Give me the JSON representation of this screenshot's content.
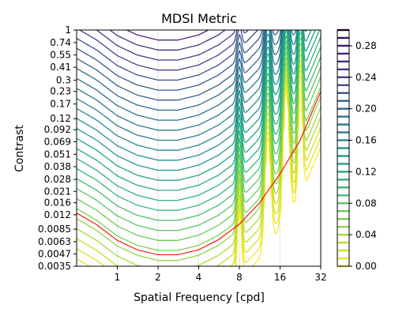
{
  "chart_data": {
    "type": "contour",
    "title": "MDSI Metric",
    "xlabel": "Spatial Frequency [cpd]",
    "ylabel": "Contrast",
    "x_scale": "log2",
    "y_scale": "log",
    "xlim": [
      0.5,
      32
    ],
    "ylim": [
      0.0035,
      1
    ],
    "xticks": [
      {
        "value": 1,
        "label": "1"
      },
      {
        "value": 2,
        "label": "2"
      },
      {
        "value": 4,
        "label": "4"
      },
      {
        "value": 8,
        "label": "8"
      },
      {
        "value": 16,
        "label": "16"
      },
      {
        "value": 32,
        "label": "32"
      }
    ],
    "yticks": [
      {
        "value": 1,
        "label": "1"
      },
      {
        "value": 0.74,
        "label": "0.74"
      },
      {
        "value": 0.55,
        "label": "0.55"
      },
      {
        "value": 0.41,
        "label": "0.41"
      },
      {
        "value": 0.3,
        "label": "0.3"
      },
      {
        "value": 0.23,
        "label": "0.23"
      },
      {
        "value": 0.17,
        "label": "0.17"
      },
      {
        "value": 0.12,
        "label": "0.12"
      },
      {
        "value": 0.092,
        "label": "0.092"
      },
      {
        "value": 0.069,
        "label": "0.069"
      },
      {
        "value": 0.051,
        "label": "0.051"
      },
      {
        "value": 0.038,
        "label": "0.038"
      },
      {
        "value": 0.028,
        "label": "0.028"
      },
      {
        "value": 0.021,
        "label": "0.021"
      },
      {
        "value": 0.016,
        "label": "0.016"
      },
      {
        "value": 0.012,
        "label": "0.012"
      },
      {
        "value": 0.0085,
        "label": "0.0085"
      },
      {
        "value": 0.0063,
        "label": "0.0063"
      },
      {
        "value": 0.0047,
        "label": "0.0047"
      },
      {
        "value": 0.0035,
        "label": "0.0035"
      }
    ],
    "grid": {
      "x": true,
      "y": false
    },
    "colormap": "viridis",
    "colorbar": {
      "range": [
        0.0,
        0.3
      ],
      "ticks": [
        {
          "value": 0.0,
          "label": "0.00"
        },
        {
          "value": 0.04,
          "label": "0.04"
        },
        {
          "value": 0.08,
          "label": "0.08"
        },
        {
          "value": 0.12,
          "label": "0.12"
        },
        {
          "value": 0.16,
          "label": "0.16"
        },
        {
          "value": 0.2,
          "label": "0.20"
        },
        {
          "value": 0.24,
          "label": "0.24"
        },
        {
          "value": 0.28,
          "label": "0.28"
        }
      ]
    },
    "contour_levels": [
      0.0,
      0.01,
      0.02,
      0.03,
      0.04,
      0.05,
      0.06,
      0.07,
      0.08,
      0.09,
      0.1,
      0.11,
      0.12,
      0.13,
      0.14,
      0.15,
      0.16,
      0.17,
      0.18,
      0.19,
      0.2,
      0.21,
      0.22,
      0.23,
      0.24,
      0.25,
      0.26,
      0.27,
      0.28,
      0.29,
      0.3
    ],
    "threshold_curve": {
      "color": "#ff0000",
      "points": [
        {
          "x": 0.5,
          "y": 0.0125
        },
        {
          "x": 0.7,
          "y": 0.0095
        },
        {
          "x": 1.0,
          "y": 0.0065
        },
        {
          "x": 1.4,
          "y": 0.0052
        },
        {
          "x": 2.0,
          "y": 0.0046
        },
        {
          "x": 2.8,
          "y": 0.0046
        },
        {
          "x": 4.0,
          "y": 0.0052
        },
        {
          "x": 5.6,
          "y": 0.0066
        },
        {
          "x": 8.0,
          "y": 0.0096
        },
        {
          "x": 11.3,
          "y": 0.016
        },
        {
          "x": 16.0,
          "y": 0.032
        },
        {
          "x": 22.6,
          "y": 0.072
        },
        {
          "x": 32.0,
          "y": 0.23
        }
      ]
    }
  }
}
